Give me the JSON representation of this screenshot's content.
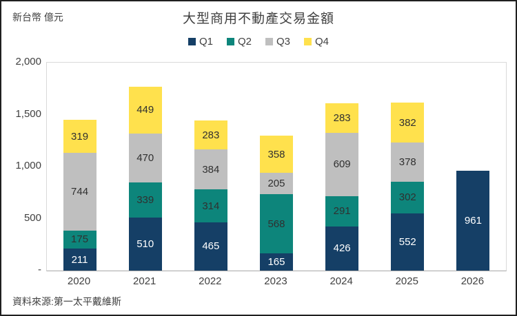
{
  "header": {
    "unit_label": "新台幣 億元",
    "title": "大型商用不動產交易金額"
  },
  "chart_data": {
    "type": "bar",
    "stacked": true,
    "title": "大型商用不動產交易金額",
    "ylabel": "新台幣 億元",
    "xlabel": "",
    "ylim": [
      0,
      2000
    ],
    "grid": false,
    "legend_position": "top",
    "categories": [
      "2020",
      "2021",
      "2022",
      "2023",
      "2024",
      "2025",
      "2026"
    ],
    "series": [
      {
        "name": "Q1",
        "color": "#153F66",
        "label_color": "#FFFFFF",
        "values": [
          211,
          510,
          465,
          165,
          426,
          552,
          961
        ]
      },
      {
        "name": "Q2",
        "color": "#0D857B",
        "label_color": "#303030",
        "values": [
          175,
          339,
          314,
          568,
          291,
          302,
          null
        ]
      },
      {
        "name": "Q3",
        "color": "#BFBFBF",
        "label_color": "#303030",
        "values": [
          744,
          470,
          384,
          205,
          609,
          378,
          null
        ]
      },
      {
        "name": "Q4",
        "color": "#FFE14D",
        "label_color": "#303030",
        "values": [
          319,
          449,
          283,
          358,
          283,
          382,
          null
        ]
      }
    ],
    "yticks": [
      {
        "value": 2000,
        "label": "2,000"
      },
      {
        "value": 1500,
        "label": "1,500"
      },
      {
        "value": 1000,
        "label": "1,000"
      },
      {
        "value": 500,
        "label": "500"
      },
      {
        "value": 0,
        "label": "-"
      }
    ]
  },
  "footer": {
    "source": "資料來源:第一太平戴維斯"
  }
}
